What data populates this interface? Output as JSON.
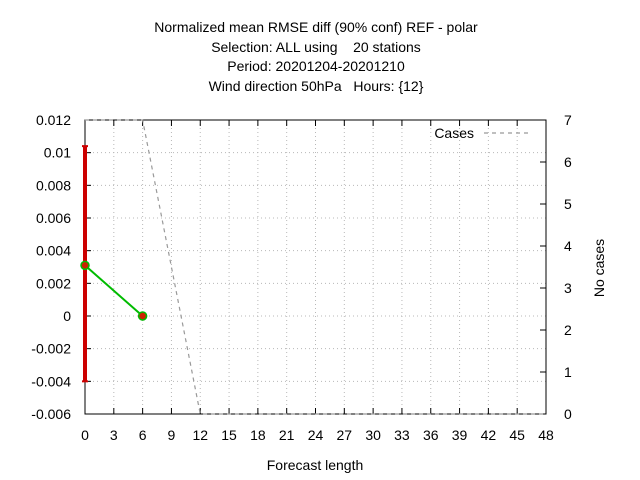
{
  "chart_data": {
    "type": "line",
    "title_lines": [
      "Normalized mean RMSE diff (90% conf) REF - polar",
      "Selection: ALL using    20 stations",
      "Period: 20201204-20201210",
      "Wind direction 50hPa   Hours: {12}"
    ],
    "xlabel": "Forecast length",
    "ylabel": "",
    "y2label": "No cases",
    "xlim": [
      0,
      48
    ],
    "ylim": [
      -0.006,
      0.012
    ],
    "y2lim": [
      0,
      7
    ],
    "xticks": [
      "0",
      "3",
      "6",
      "9",
      "12",
      "15",
      "18",
      "21",
      "24",
      "27",
      "30",
      "33",
      "36",
      "39",
      "42",
      "45",
      "48"
    ],
    "yticks": [
      "0.012",
      "0.01",
      "0.008",
      "0.006",
      "0.004",
      "0.002",
      "0",
      "-0.002",
      "-0.004",
      "-0.006"
    ],
    "y2ticks": [
      "7",
      "6",
      "5",
      "4",
      "3",
      "2",
      "1",
      "0"
    ],
    "grid": true,
    "legend_position": "top-right",
    "series": [
      {
        "type": "line",
        "color": "#00bb00",
        "marker_color": "#cc2200",
        "x": [
          0,
          6
        ],
        "y": [
          0.0031,
          0.0
        ]
      },
      {
        "name": "Cases",
        "type": "dashed-line",
        "axis": "y2",
        "color": "#999999",
        "x": [
          0,
          6,
          12,
          48
        ],
        "y": [
          7,
          7,
          0,
          0
        ]
      }
    ],
    "error_bars": [
      {
        "x": 0,
        "low": -0.004,
        "high": 0.0104,
        "color": "#cc0000"
      }
    ]
  }
}
